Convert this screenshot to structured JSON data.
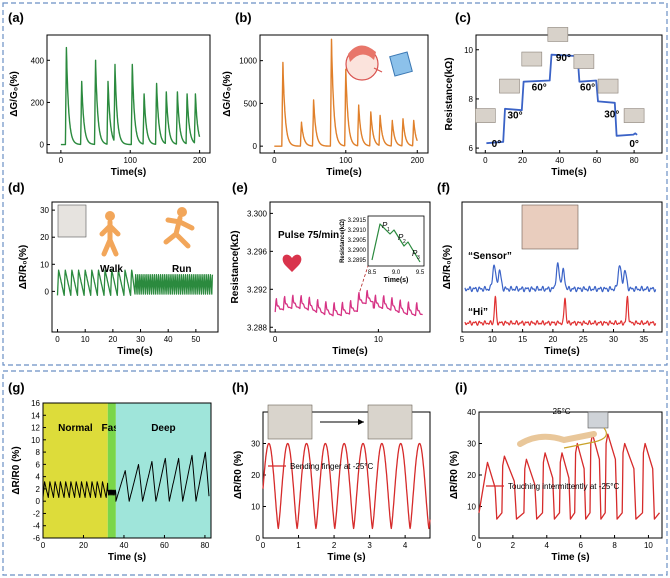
{
  "chart_data": [
    {
      "panel": "(a)",
      "type": "line",
      "xlabel": "Time(s)",
      "ylabel": "ΔG/G₀(%)",
      "xlim": [
        -20,
        215
      ],
      "ylim": [
        -40,
        520
      ],
      "xticks": [
        "0",
        "100",
        "200"
      ],
      "yticks": [
        "0",
        "200",
        "400"
      ],
      "color": "#2b8a3e",
      "peaks": [
        [
          8,
          460
        ],
        [
          30,
          300
        ],
        [
          50,
          400
        ],
        [
          68,
          300
        ],
        [
          78,
          380
        ],
        [
          103,
          380
        ],
        [
          120,
          240
        ],
        [
          138,
          290
        ],
        [
          152,
          250
        ],
        [
          168,
          250
        ],
        [
          182,
          240
        ],
        [
          194,
          240
        ]
      ]
    },
    {
      "panel": "(b)",
      "type": "line",
      "xlabel": "Time(s)",
      "ylabel": "ΔG/G₀(%)",
      "xlim": [
        -20,
        215
      ],
      "ylim": [
        -80,
        1300
      ],
      "xticks": [
        "0",
        "100",
        "200"
      ],
      "yticks": [
        "0",
        "500",
        "1000"
      ],
      "color": "#e0802b",
      "peaks": [
        [
          12,
          980
        ],
        [
          38,
          280
        ],
        [
          55,
          540
        ],
        [
          80,
          1250
        ],
        [
          100,
          900
        ],
        [
          118,
          480
        ],
        [
          135,
          400
        ],
        [
          148,
          360
        ],
        [
          165,
          300
        ],
        [
          180,
          320
        ],
        [
          195,
          300
        ]
      ]
    },
    {
      "panel": "(c)",
      "type": "line",
      "xlabel": "Time(s)",
      "ylabel": "Resistance(kΩ)",
      "xlim": [
        -5,
        95
      ],
      "ylim": [
        5.8,
        10.6
      ],
      "xticks": [
        "0",
        "20",
        "40",
        "60",
        "80"
      ],
      "yticks": [
        "6",
        "8",
        "10"
      ],
      "color": "#3b63c7",
      "levels": [
        [
          0,
          6.2
        ],
        [
          10,
          7.6
        ],
        [
          20,
          8.7
        ],
        [
          35,
          9.8
        ],
        [
          50,
          8.7
        ],
        [
          60,
          7.9
        ],
        [
          70,
          6.5
        ],
        [
          80,
          6.6
        ]
      ],
      "angle_labels": [
        "0°",
        "30°",
        "60°",
        "90°",
        "60°",
        "30°",
        "0°"
      ]
    },
    {
      "panel": "(d)",
      "type": "line",
      "xlabel": "Time(s)",
      "ylabel": "ΔR/R₀(%)",
      "xlim": [
        -2,
        58
      ],
      "ylim": [
        -15,
        33
      ],
      "xticks": [
        "0",
        "10",
        "20",
        "30",
        "40",
        "50"
      ],
      "yticks": [
        "0",
        "10",
        "20",
        "30"
      ],
      "color": "#2b8a3e",
      "walk": {
        "t_end": 27,
        "period": 2.4,
        "low": -1.5,
        "high": 8
      },
      "run": {
        "t_start": 28,
        "t_end": 56,
        "period": 0.75,
        "low": -1,
        "high": 6.5
      },
      "labels": {
        "walk": "Walk",
        "run": "Run"
      }
    },
    {
      "panel": "(e)",
      "type": "line",
      "xlabel": "Time(s)",
      "ylabel": "Resistance(kΩ)",
      "xlim": [
        -0.5,
        15
      ],
      "ylim": [
        3.2875,
        3.3012
      ],
      "xticks": [
        "0",
        "10"
      ],
      "yticks": [
        "3.288",
        "3.292",
        "3.296",
        "3.300"
      ],
      "color": "#d63384",
      "beats_per_min": 75,
      "base": 3.2896,
      "amp": 0.0014,
      "pulse_label": "Pulse 75/min",
      "inset": {
        "xlabel": "Time(s)",
        "ylabel": "Resistance(kΩ)",
        "xticks": [
          "8.5",
          "9.0",
          "9.5"
        ],
        "yticks": [
          "3.2915",
          "3.2910",
          "3.2905",
          "3.2900",
          "3.2895"
        ],
        "labels": [
          "P",
          "P",
          "P"
        ],
        "subs": [
          "1",
          "2",
          "3"
        ]
      }
    },
    {
      "panel": "(f)",
      "type": "line",
      "xlabel": "Time(s)",
      "ylabel": "ΔR/R₀(%)",
      "xlim": [
        5,
        38
      ],
      "xticks": [
        "5",
        "10",
        "15",
        "20",
        "25",
        "30",
        "35"
      ],
      "series": [
        {
          "name": "“Sensor”",
          "color": "#3b63c7",
          "peaks": [
            10.3,
            20.8,
            31.0
          ]
        },
        {
          "name": "“Hi”",
          "color": "#e03131",
          "peaks": [
            10.5,
            22.0,
            32.3
          ]
        }
      ]
    },
    {
      "panel": "(g)",
      "type": "line",
      "xlabel": "Time (s)",
      "ylabel": "ΔR/R0 (%)",
      "xlim": [
        0,
        83
      ],
      "ylim": [
        -6,
        16
      ],
      "xticks": [
        "0",
        "20",
        "40",
        "60",
        "80"
      ],
      "yticks": [
        "-6",
        "-4",
        "-2",
        "0",
        "2",
        "4",
        "6",
        "8",
        "10",
        "12",
        "14",
        "16"
      ],
      "color": "#000000",
      "regions": [
        {
          "name": "Normal",
          "from": 0,
          "to": 32,
          "color": "#dddc3a"
        },
        {
          "name": "Fast",
          "from": 32,
          "to": 36,
          "color": "#7ad64a"
        },
        {
          "name": "Deep",
          "from": 36,
          "to": 83,
          "color": "#9fe5da"
        }
      ]
    },
    {
      "panel": "(h)",
      "type": "line",
      "xlabel": "Time (s)",
      "ylabel": "ΔR/R0 (%)",
      "xlim": [
        0,
        4.7
      ],
      "ylim": [
        0,
        40
      ],
      "xticks": [
        "0",
        "1",
        "2",
        "3",
        "4"
      ],
      "yticks": [
        "0",
        "10",
        "20",
        "30"
      ],
      "color": "#d62b2b",
      "legend": "Bending finger at -25°C",
      "period": 0.53,
      "low": 3,
      "high": 30
    },
    {
      "panel": "(i)",
      "type": "line",
      "xlabel": "Time (s)",
      "ylabel": "ΔR/R0 (%)",
      "xlim": [
        0,
        10.8
      ],
      "ylim": [
        0,
        40
      ],
      "xticks": [
        "0",
        "2",
        "4",
        "6",
        "8",
        "10"
      ],
      "yticks": [
        "0",
        "10",
        "20",
        "30",
        "40"
      ],
      "color": "#d62b2b",
      "legend": "Touching intermittently at -25°C",
      "temp_label": "-25°C",
      "peaks": [
        [
          0.5,
          24
        ],
        [
          1.5,
          26
        ],
        [
          2.8,
          25
        ],
        [
          3.9,
          27
        ],
        [
          4.9,
          27
        ],
        [
          5.8,
          30
        ],
        [
          6.7,
          33
        ],
        [
          7.6,
          33
        ],
        [
          8.6,
          30
        ],
        [
          9.8,
          30
        ]
      ]
    }
  ]
}
